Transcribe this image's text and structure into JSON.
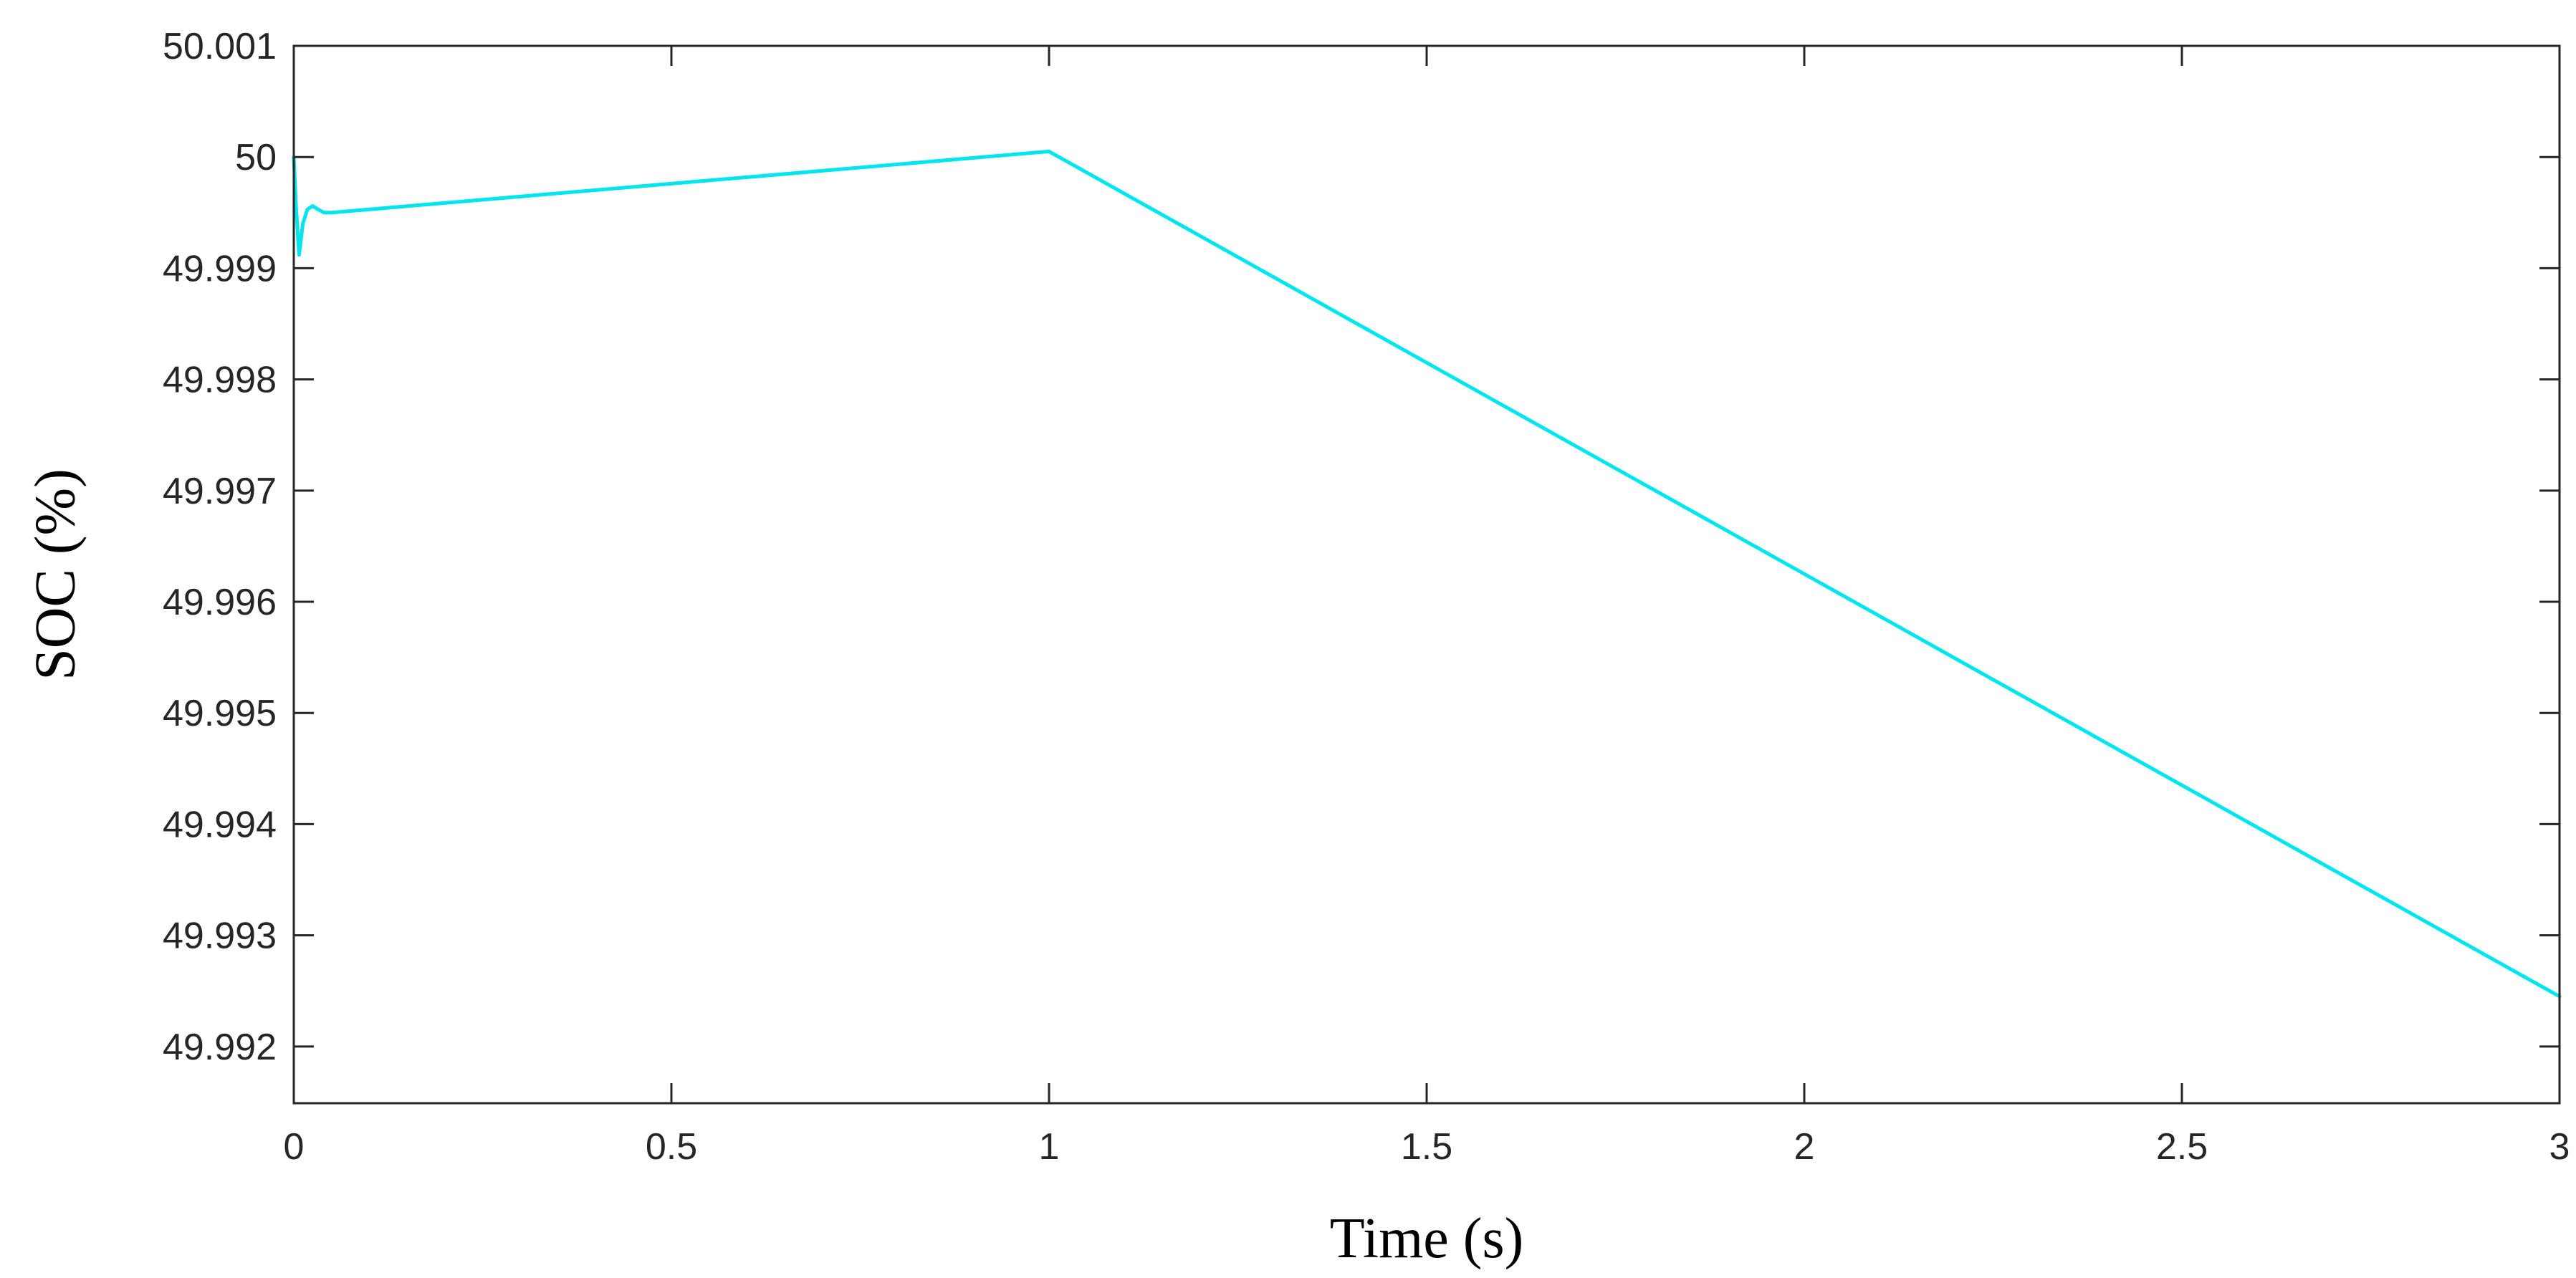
{
  "chart_data": {
    "type": "line",
    "xlabel": "Time (s)",
    "ylabel": "SOC (%)",
    "xlim": [
      0,
      3
    ],
    "ylim": [
      49.99149,
      50.001
    ],
    "grid": false,
    "x_ticks": [
      {
        "value": 0,
        "label": "0"
      },
      {
        "value": 0.5,
        "label": "0.5"
      },
      {
        "value": 1,
        "label": "1"
      },
      {
        "value": 1.5,
        "label": "1.5"
      },
      {
        "value": 2,
        "label": "2"
      },
      {
        "value": 2.5,
        "label": "2.5"
      },
      {
        "value": 3,
        "label": "3"
      }
    ],
    "y_ticks": [
      {
        "value": 49.992,
        "label": "49.992"
      },
      {
        "value": 49.993,
        "label": "49.993"
      },
      {
        "value": 49.994,
        "label": "49.994"
      },
      {
        "value": 49.995,
        "label": "49.995"
      },
      {
        "value": 49.996,
        "label": "49.996"
      },
      {
        "value": 49.997,
        "label": "49.997"
      },
      {
        "value": 49.998,
        "label": "49.998"
      },
      {
        "value": 49.999,
        "label": "49.999"
      },
      {
        "value": 50,
        "label": "50"
      },
      {
        "value": 50.001,
        "label": "50.001"
      }
    ],
    "series": [
      {
        "color": "#00E5EE",
        "x": [
          0,
          0.003,
          0.007,
          0.012,
          0.018,
          0.025,
          0.032,
          0.04,
          0.05,
          1.0,
          3.0
        ],
        "y": [
          50.0,
          49.99955,
          49.99912,
          49.9994,
          49.99953,
          49.99956,
          49.99953,
          49.9995,
          49.9995,
          50.00005,
          49.99245
        ]
      }
    ]
  }
}
